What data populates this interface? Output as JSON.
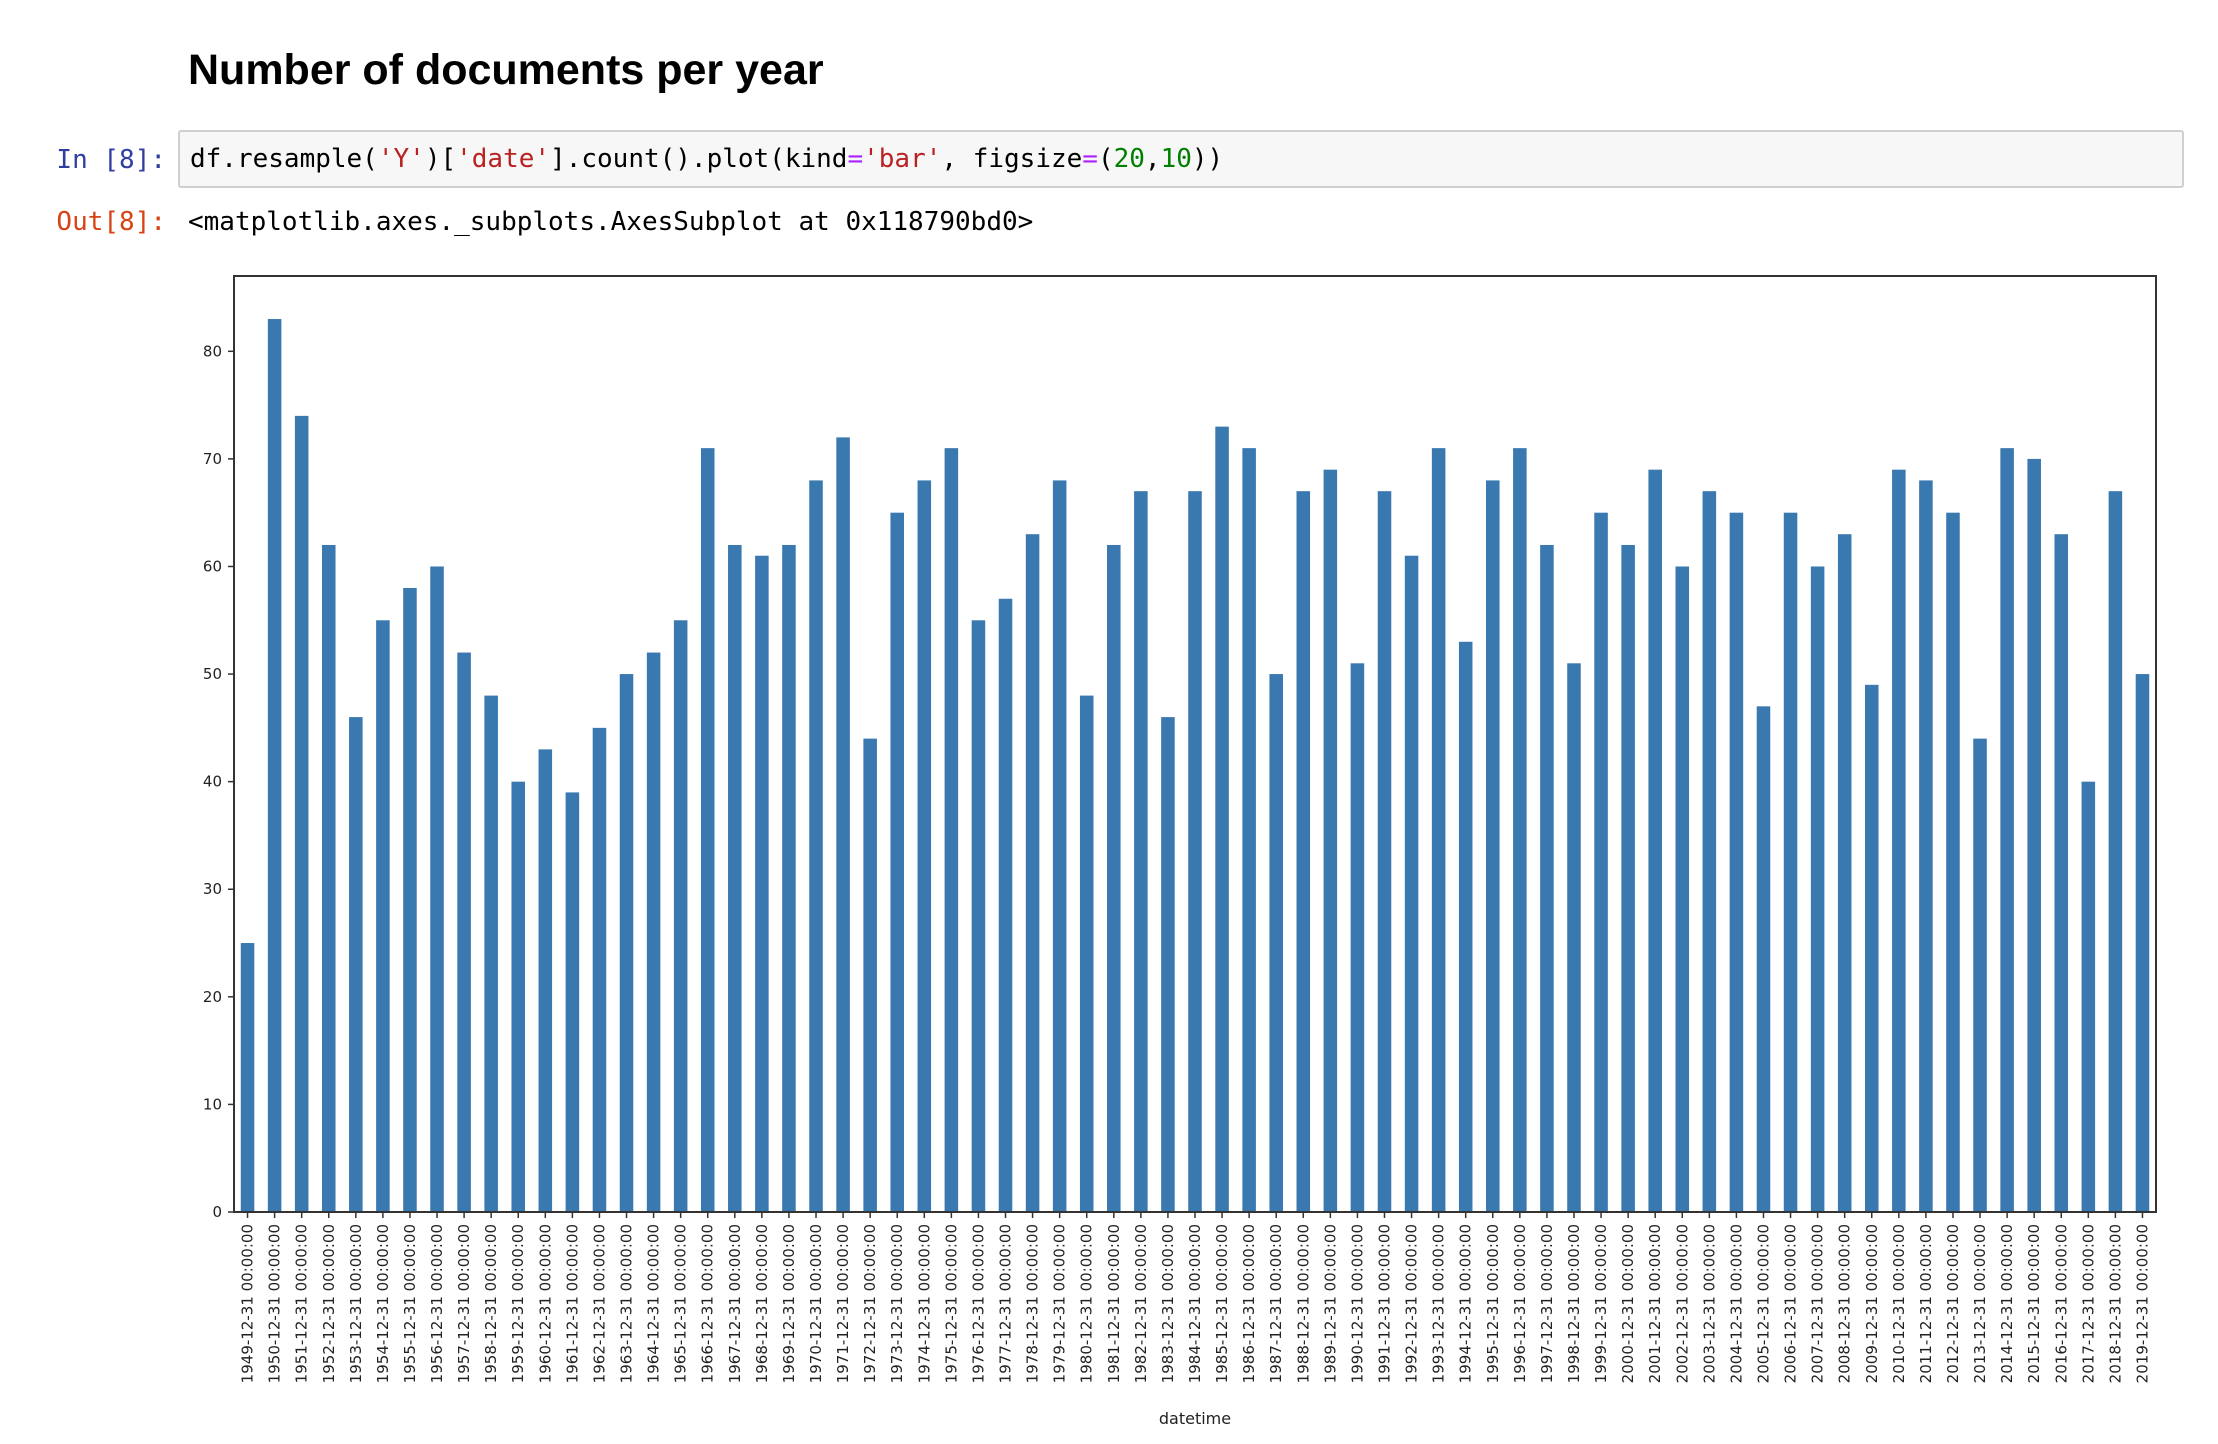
{
  "heading": "Number of documents per year",
  "cell_in": {
    "prompt": "In [8]:",
    "code": {
      "p1": "df.resample(",
      "s1": "'Y'",
      "p2": ")[",
      "s2": "'date'",
      "p3": "].count().plot(kind",
      "op1": "=",
      "s3": "'bar'",
      "p4": ", figsize",
      "op2": "=",
      "p5": "(",
      "n1": "20",
      "p6": ",",
      "n2": "10",
      "p7": "))"
    }
  },
  "cell_out": {
    "prompt": "Out[8]:",
    "text": "<matplotlib.axes._subplots.AxesSubplot at 0x118790bd0>"
  },
  "chart_data": {
    "type": "bar",
    "xlabel": "datetime",
    "ylabel": "",
    "ylim": [
      0,
      87
    ],
    "yticks": [
      0,
      10,
      20,
      30,
      40,
      50,
      60,
      70,
      80
    ],
    "bar_color": "#3a78b0",
    "categories": [
      "1949-12-31 00:00:00",
      "1950-12-31 00:00:00",
      "1951-12-31 00:00:00",
      "1952-12-31 00:00:00",
      "1953-12-31 00:00:00",
      "1954-12-31 00:00:00",
      "1955-12-31 00:00:00",
      "1956-12-31 00:00:00",
      "1957-12-31 00:00:00",
      "1958-12-31 00:00:00",
      "1959-12-31 00:00:00",
      "1960-12-31 00:00:00",
      "1961-12-31 00:00:00",
      "1962-12-31 00:00:00",
      "1963-12-31 00:00:00",
      "1964-12-31 00:00:00",
      "1965-12-31 00:00:00",
      "1966-12-31 00:00:00",
      "1967-12-31 00:00:00",
      "1968-12-31 00:00:00",
      "1969-12-31 00:00:00",
      "1970-12-31 00:00:00",
      "1971-12-31 00:00:00",
      "1972-12-31 00:00:00",
      "1973-12-31 00:00:00",
      "1974-12-31 00:00:00",
      "1975-12-31 00:00:00",
      "1976-12-31 00:00:00",
      "1977-12-31 00:00:00",
      "1978-12-31 00:00:00",
      "1979-12-31 00:00:00",
      "1980-12-31 00:00:00",
      "1981-12-31 00:00:00",
      "1982-12-31 00:00:00",
      "1983-12-31 00:00:00",
      "1984-12-31 00:00:00",
      "1985-12-31 00:00:00",
      "1986-12-31 00:00:00",
      "1987-12-31 00:00:00",
      "1988-12-31 00:00:00",
      "1989-12-31 00:00:00",
      "1990-12-31 00:00:00",
      "1991-12-31 00:00:00",
      "1992-12-31 00:00:00",
      "1993-12-31 00:00:00",
      "1994-12-31 00:00:00",
      "1995-12-31 00:00:00",
      "1996-12-31 00:00:00",
      "1997-12-31 00:00:00",
      "1998-12-31 00:00:00",
      "1999-12-31 00:00:00",
      "2000-12-31 00:00:00",
      "2001-12-31 00:00:00",
      "2002-12-31 00:00:00",
      "2003-12-31 00:00:00",
      "2004-12-31 00:00:00",
      "2005-12-31 00:00:00",
      "2006-12-31 00:00:00",
      "2007-12-31 00:00:00",
      "2008-12-31 00:00:00",
      "2009-12-31 00:00:00",
      "2010-12-31 00:00:00",
      "2011-12-31 00:00:00",
      "2012-12-31 00:00:00",
      "2013-12-31 00:00:00",
      "2014-12-31 00:00:00",
      "2015-12-31 00:00:00",
      "2016-12-31 00:00:00",
      "2017-12-31 00:00:00",
      "2018-12-31 00:00:00",
      "2019-12-31 00:00:00"
    ],
    "values": [
      25,
      83,
      74,
      62,
      46,
      55,
      58,
      60,
      52,
      48,
      40,
      43,
      39,
      45,
      50,
      52,
      55,
      71,
      62,
      61,
      62,
      68,
      72,
      44,
      65,
      68,
      71,
      55,
      57,
      63,
      68,
      48,
      62,
      67,
      46,
      67,
      73,
      71,
      50,
      67,
      69,
      51,
      67,
      61,
      71,
      53,
      68,
      71,
      62,
      51,
      65,
      62,
      69,
      60,
      67,
      65,
      47,
      65,
      60,
      63,
      49,
      69,
      68,
      65,
      44,
      71,
      70,
      63,
      40,
      67,
      50
    ]
  }
}
